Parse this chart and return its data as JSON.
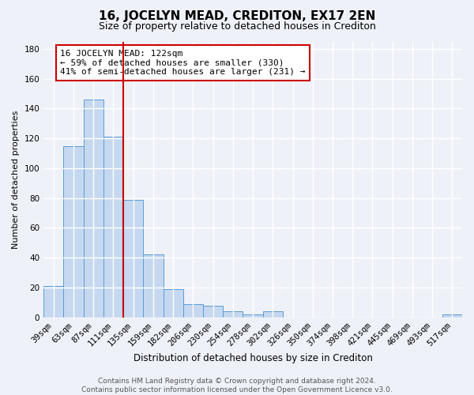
{
  "title": "16, JOCELYN MEAD, CREDITON, EX17 2EN",
  "subtitle": "Size of property relative to detached houses in Crediton",
  "xlabel": "Distribution of detached houses by size in Crediton",
  "ylabel": "Number of detached properties",
  "bar_labels": [
    "39sqm",
    "63sqm",
    "87sqm",
    "111sqm",
    "135sqm",
    "159sqm",
    "182sqm",
    "206sqm",
    "230sqm",
    "254sqm",
    "278sqm",
    "302sqm",
    "326sqm",
    "350sqm",
    "374sqm",
    "398sqm",
    "421sqm",
    "445sqm",
    "469sqm",
    "493sqm",
    "517sqm"
  ],
  "bar_values": [
    21,
    115,
    146,
    121,
    79,
    42,
    19,
    9,
    8,
    4,
    2,
    4,
    0,
    0,
    0,
    0,
    0,
    0,
    0,
    0,
    2
  ],
  "bar_color": "#c5d8f0",
  "bar_edge_color": "#5b9bd5",
  "vline_x": 3.5,
  "vline_color": "#cc0000",
  "annotation_text": "16 JOCELYN MEAD: 122sqm\n← 59% of detached houses are smaller (330)\n41% of semi-detached houses are larger (231) →",
  "annotation_box_edge": "#cc0000",
  "ylim": [
    0,
    185
  ],
  "yticks": [
    0,
    20,
    40,
    60,
    80,
    100,
    120,
    140,
    160,
    180
  ],
  "footer": "Contains HM Land Registry data © Crown copyright and database right 2024.\nContains public sector information licensed under the Open Government Licence v3.0.",
  "bg_color": "#eef2f8",
  "plot_bg_color": "#eef2f8",
  "grid_color": "#ffffff",
  "title_fontsize": 11,
  "subtitle_fontsize": 9,
  "ylabel_fontsize": 8,
  "xlabel_fontsize": 8.5,
  "tick_fontsize": 7.5,
  "footer_fontsize": 6.5
}
